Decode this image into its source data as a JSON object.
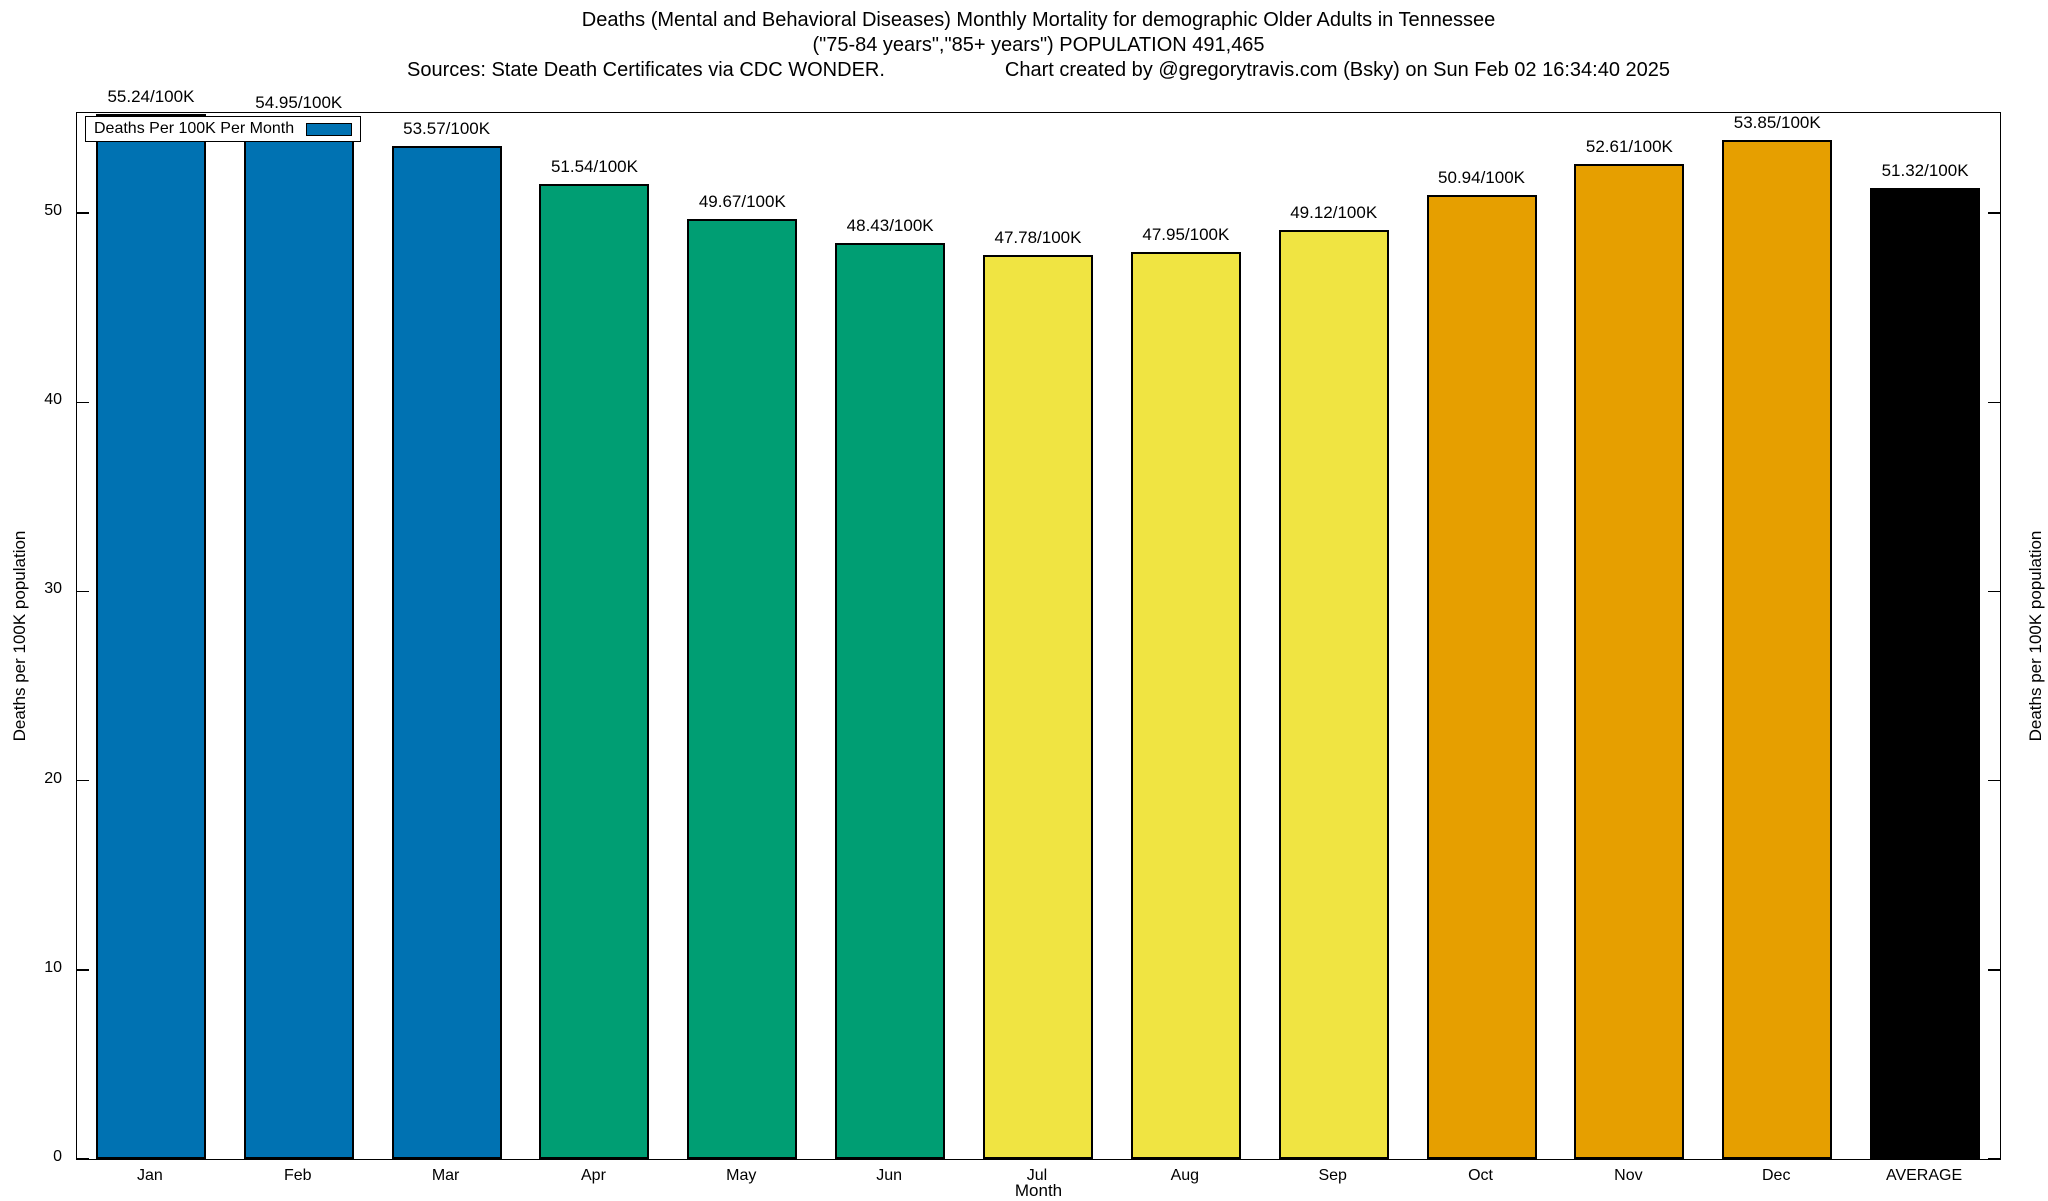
{
  "title": {
    "line1": "Deaths (Mental and Behavioral Diseases) Monthly Mortality for demographic Older Adults in Tennessee",
    "line2": "(\"75-84 years\",\"85+ years\") POPULATION 491,465",
    "line3_left": "Sources: State Death Certificates via CDC WONDER.",
    "line3_right": "Chart created by @gregorytravis.com (Bsky) on Sun Feb 02 16:34:40 2025"
  },
  "legend": {
    "label": "Deaths Per 100K Per Month",
    "swatch_color": "#0072B2"
  },
  "axes": {
    "ylabel_left": "Deaths per 100K population",
    "ylabel_right": "Deaths per 100K population",
    "xlabel": "Month",
    "yticks": [
      0,
      10,
      20,
      30,
      40,
      50
    ]
  },
  "chart_data": {
    "type": "bar",
    "title": "Deaths (Mental and Behavioral Diseases) Monthly Mortality for demographic Older Adults in Tennessee",
    "subtitle": "(\"75-84 years\",\"85+ years\") POPULATION 491,465",
    "source_note": "Sources: State Death Certificates via CDC WONDER.",
    "credit_note": "Chart created by @gregorytravis.com (Bsky) on Sun Feb 02 16:34:40 2025",
    "categories": [
      "Jan",
      "Feb",
      "Mar",
      "Apr",
      "May",
      "Jun",
      "Jul",
      "Aug",
      "Sep",
      "Oct",
      "Nov",
      "Dec",
      "AVERAGE"
    ],
    "values": [
      55.24,
      54.95,
      53.57,
      51.54,
      49.67,
      48.43,
      47.78,
      47.95,
      49.12,
      50.94,
      52.61,
      53.85,
      51.32
    ],
    "value_labels": [
      "55.24/100K",
      "54.95/100K",
      "53.57/100K",
      "51.54/100K",
      "49.67/100K",
      "48.43/100K",
      "47.78/100K",
      "47.95/100K",
      "49.12/100K",
      "50.94/100K",
      "52.61/100K",
      "53.85/100K",
      "51.32/100K"
    ],
    "bar_colors": [
      "#0072B2",
      "#0072B2",
      "#0072B2",
      "#009E73",
      "#009E73",
      "#009E73",
      "#F0E442",
      "#F0E442",
      "#F0E442",
      "#E69F00",
      "#E69F00",
      "#E69F00",
      "#000000"
    ],
    "legend": "Deaths Per 100K Per Month",
    "xlabel": "Month",
    "ylabel": "Deaths per 100K population",
    "ylim": [
      0,
      55.24
    ],
    "yticks": [
      0,
      10,
      20,
      30,
      40,
      50
    ],
    "grid": false,
    "legend_position": "top-left"
  }
}
